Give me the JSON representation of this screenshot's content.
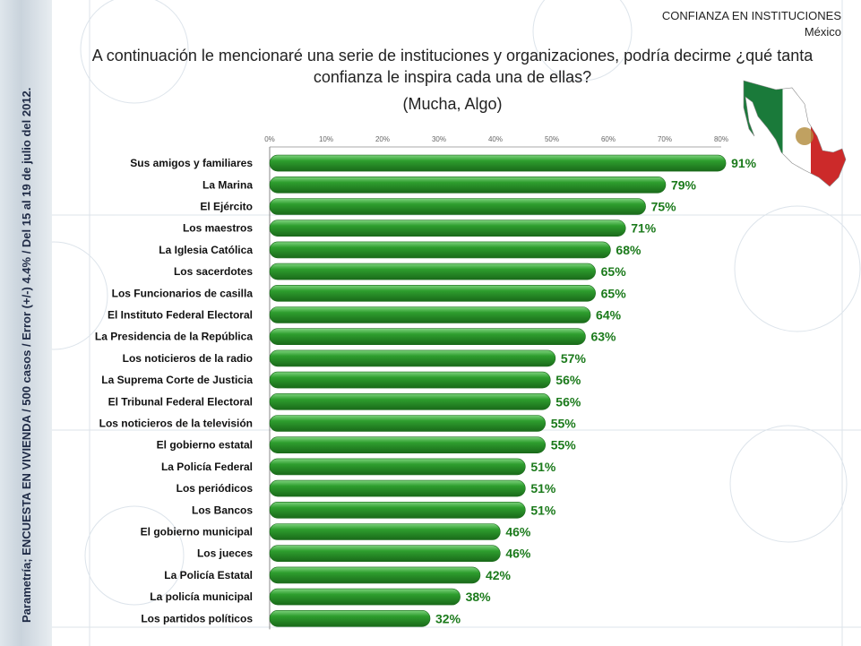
{
  "header": {
    "title": "CONFIANZA EN INSTITUCIONES",
    "subtitle": "México"
  },
  "question": {
    "text": "A continuación le mencionaré una serie de instituciones y organizaciones, podría decirme ¿qué tanta confianza le inspira cada una de ellas?",
    "note": "(Mucha, Algo)"
  },
  "side_note": "Parametría; ENCUESTA EN VIVIENDA / 500 casos / Error (+/-) 4.4% / Del 15 al 19 de julio del 2012.",
  "colors": {
    "bar": "#2e9e2e",
    "bar_dark": "#1a6a1a",
    "label": "#1b7a1b"
  },
  "chart_data": {
    "type": "bar",
    "orientation": "horizontal",
    "xlim": [
      0,
      80
    ],
    "ticks": [
      "0%",
      "10%",
      "20%",
      "30%",
      "40%",
      "50%",
      "60%",
      "70%",
      "80%"
    ],
    "tick_values": [
      0,
      10,
      20,
      30,
      40,
      50,
      60,
      70,
      80
    ],
    "categories": [
      "Sus amigos y familiares",
      "La Marina",
      "El Ejército",
      "Los maestros",
      "La Iglesia Católica",
      "Los sacerdotes",
      "Los Funcionarios de casilla",
      "El Instituto Federal Electoral",
      "La Presidencia de la República",
      "Los noticieros de la radio",
      "La Suprema Corte de Justicia",
      "El Tribunal Federal Electoral",
      "Los noticieros de la televisión",
      "El gobierno estatal",
      "La Policía Federal",
      "Los periódicos",
      "Los Bancos",
      "El gobierno municipal",
      "Los jueces",
      "La Policía Estatal",
      "La policía municipal",
      "Los partidos políticos"
    ],
    "values": [
      91,
      79,
      75,
      71,
      68,
      65,
      65,
      64,
      63,
      57,
      56,
      56,
      55,
      55,
      51,
      51,
      51,
      46,
      46,
      42,
      38,
      32
    ],
    "value_labels": [
      "91%",
      "79%",
      "75%",
      "71%",
      "68%",
      "65%",
      "65%",
      "64%",
      "63%",
      "57%",
      "56%",
      "56%",
      "55%",
      "55%",
      "51%",
      "51%",
      "51%",
      "46%",
      "46%",
      "42%",
      "38%",
      "32%"
    ],
    "grid": false,
    "legend": "none"
  }
}
